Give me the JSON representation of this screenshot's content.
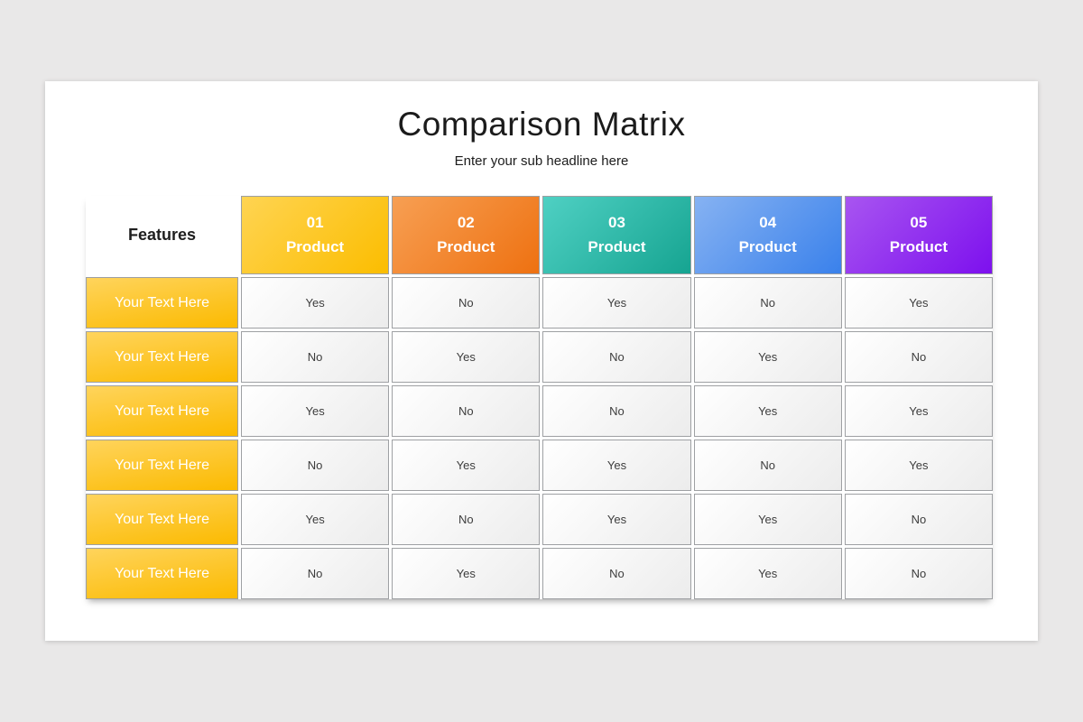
{
  "slide": {
    "background_color": "#e9e8e8",
    "card_color": "#ffffff"
  },
  "chart_data": {
    "type": "table",
    "title": "Comparison Matrix",
    "subtitle": "Enter your sub headline here",
    "corner_label": "Features",
    "columns": [
      {
        "number": "01",
        "name": "Product",
        "color_start": "#ffd452",
        "color_end": "#fbbd00"
      },
      {
        "number": "02",
        "name": "Product",
        "color_start": "#f79f53",
        "color_end": "#ee7111"
      },
      {
        "number": "03",
        "name": "Product",
        "color_start": "#4fd0c3",
        "color_end": "#16a491"
      },
      {
        "number": "04",
        "name": "Product",
        "color_start": "#86b2f2",
        "color_end": "#3a81eb"
      },
      {
        "number": "05",
        "name": "Product",
        "color_start": "#a855f0",
        "color_end": "#7d10ee"
      }
    ],
    "row_label_color_start": "#ffd45c",
    "row_label_color_end": "#fbba00",
    "rows": [
      {
        "label": "Your Text Here",
        "values": [
          "Yes",
          "No",
          "Yes",
          "No",
          "Yes"
        ]
      },
      {
        "label": "Your Text Here",
        "values": [
          "No",
          "Yes",
          "No",
          "Yes",
          "No"
        ]
      },
      {
        "label": "Your Text Here",
        "values": [
          "Yes",
          "No",
          "No",
          "Yes",
          "Yes"
        ]
      },
      {
        "label": "Your Text Here",
        "values": [
          "No",
          "Yes",
          "Yes",
          "No",
          "Yes"
        ]
      },
      {
        "label": "Your Text Here",
        "values": [
          "Yes",
          "No",
          "Yes",
          "Yes",
          "No"
        ]
      },
      {
        "label": "Your Text Here",
        "values": [
          "No",
          "Yes",
          "No",
          "Yes",
          "No"
        ]
      }
    ]
  }
}
